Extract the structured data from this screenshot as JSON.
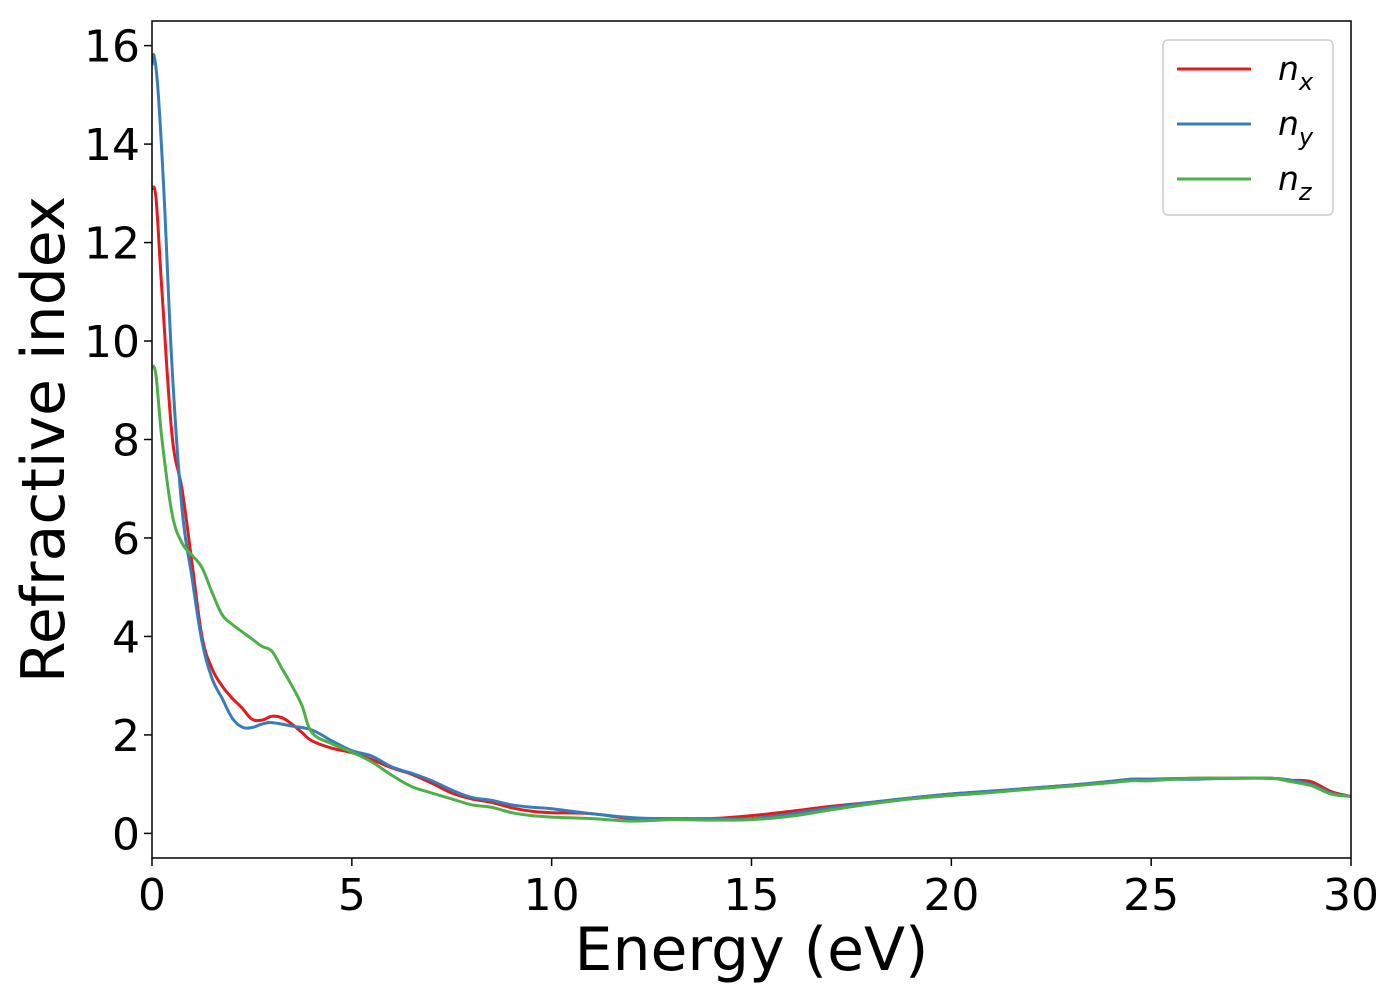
{
  "chart_data": {
    "type": "line",
    "xlabel": "Energy (eV)",
    "ylabel": "Refractive index",
    "xlim": [
      0,
      30
    ],
    "ylim": [
      -0.5,
      16.5
    ],
    "xticks": [
      0,
      5,
      10,
      15,
      20,
      25,
      30
    ],
    "yticks": [
      0,
      2,
      4,
      6,
      8,
      10,
      12,
      14,
      16
    ],
    "grid": false,
    "legend_position": "top-right",
    "series": [
      {
        "name": "n_x",
        "label_base": "n",
        "label_sub": "x",
        "color": "#e41a1c",
        "x": [
          0,
          0.1,
          0.25,
          0.5,
          0.75,
          1.0,
          1.25,
          1.5,
          1.75,
          2.0,
          2.25,
          2.5,
          2.75,
          3.0,
          3.25,
          3.5,
          3.75,
          4.0,
          4.5,
          5.0,
          5.5,
          6.0,
          6.5,
          7.0,
          7.5,
          8.0,
          8.5,
          9.0,
          9.5,
          10.0,
          11.0,
          12.0,
          13.0,
          14.0,
          15.0,
          16.0,
          17.0,
          18.0,
          19.0,
          20.0,
          21.0,
          22.0,
          23.0,
          24.0,
          24.5,
          25.0,
          26.0,
          27.0,
          28.0,
          28.5,
          29.0,
          29.5,
          30.0
        ],
        "y": [
          13.1,
          12.9,
          11.0,
          8.1,
          7.0,
          5.5,
          4.0,
          3.35,
          3.0,
          2.75,
          2.55,
          2.32,
          2.3,
          2.38,
          2.35,
          2.22,
          2.05,
          1.88,
          1.73,
          1.64,
          1.5,
          1.33,
          1.2,
          1.02,
          0.82,
          0.7,
          0.63,
          0.52,
          0.45,
          0.42,
          0.4,
          0.3,
          0.3,
          0.3,
          0.36,
          0.45,
          0.55,
          0.63,
          0.72,
          0.8,
          0.85,
          0.92,
          0.98,
          1.05,
          1.1,
          1.1,
          1.12,
          1.12,
          1.12,
          1.08,
          1.05,
          0.85,
          0.75
        ]
      },
      {
        "name": "n_y",
        "label_base": "n",
        "label_sub": "y",
        "color": "#377eb8",
        "x": [
          0,
          0.05,
          0.15,
          0.3,
          0.5,
          0.75,
          1.0,
          1.25,
          1.5,
          1.75,
          2.0,
          2.25,
          2.5,
          2.75,
          3.0,
          3.5,
          4.0,
          4.5,
          5.0,
          5.5,
          6.0,
          6.5,
          7.0,
          7.5,
          8.0,
          8.5,
          9.0,
          9.5,
          10.0,
          11.0,
          12.0,
          13.0,
          14.0,
          15.0,
          16.0,
          17.0,
          18.0,
          19.0,
          20.0,
          21.0,
          22.0,
          23.0,
          24.0,
          24.5,
          25.0,
          26.0,
          27.0,
          28.0,
          28.5,
          29.0,
          29.5,
          30.0
        ],
        "y": [
          15.6,
          15.8,
          15.1,
          13.0,
          9.5,
          6.6,
          5.2,
          3.9,
          3.15,
          2.75,
          2.35,
          2.16,
          2.15,
          2.22,
          2.25,
          2.18,
          2.1,
          1.88,
          1.68,
          1.57,
          1.35,
          1.22,
          1.07,
          0.88,
          0.73,
          0.67,
          0.58,
          0.53,
          0.5,
          0.4,
          0.32,
          0.3,
          0.3,
          0.3,
          0.4,
          0.52,
          0.63,
          0.72,
          0.8,
          0.86,
          0.92,
          0.98,
          1.06,
          1.1,
          1.1,
          1.1,
          1.12,
          1.12,
          1.08,
          1.0,
          0.82,
          0.75
        ]
      },
      {
        "name": "n_z",
        "label_base": "n",
        "label_sub": "z",
        "color": "#4daf4a",
        "x": [
          0,
          0.1,
          0.25,
          0.5,
          0.75,
          1.0,
          1.25,
          1.5,
          1.75,
          2.0,
          2.5,
          2.75,
          3.0,
          3.25,
          3.5,
          3.75,
          4.0,
          4.5,
          5.0,
          5.5,
          6.0,
          6.5,
          7.0,
          7.5,
          8.0,
          8.5,
          9.0,
          9.5,
          10.0,
          11.0,
          12.0,
          13.0,
          14.0,
          15.0,
          16.0,
          17.0,
          18.0,
          19.0,
          20.0,
          21.0,
          22.0,
          23.0,
          24.0,
          24.5,
          25.0,
          26.0,
          27.0,
          28.0,
          28.5,
          29.0,
          29.5,
          30.0
        ],
        "y": [
          9.5,
          9.3,
          8.0,
          6.5,
          5.9,
          5.65,
          5.4,
          4.9,
          4.45,
          4.25,
          3.95,
          3.8,
          3.7,
          3.35,
          3.0,
          2.6,
          2.05,
          1.82,
          1.65,
          1.45,
          1.18,
          0.95,
          0.82,
          0.7,
          0.58,
          0.53,
          0.42,
          0.36,
          0.33,
          0.3,
          0.25,
          0.28,
          0.27,
          0.28,
          0.35,
          0.48,
          0.6,
          0.7,
          0.77,
          0.83,
          0.9,
          0.96,
          1.03,
          1.07,
          1.07,
          1.12,
          1.12,
          1.12,
          1.05,
          0.97,
          0.8,
          0.75
        ]
      }
    ]
  }
}
